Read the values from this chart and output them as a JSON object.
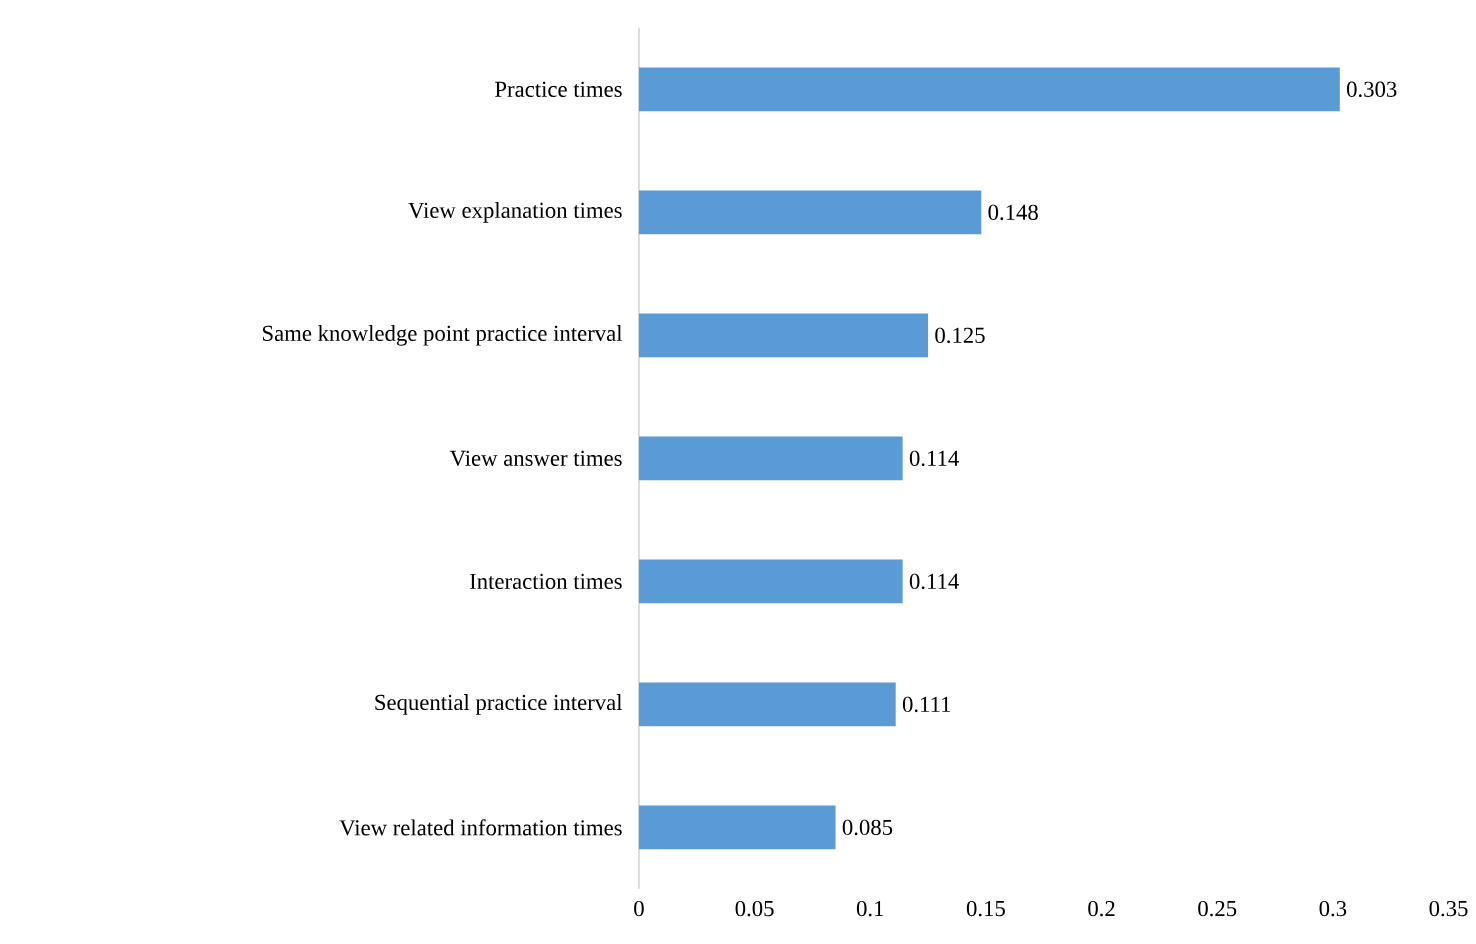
{
  "chart_data": {
    "type": "bar",
    "orientation": "horizontal",
    "categories": [
      "Practice times",
      "View explanation times",
      "Same knowledge point practice interval",
      "View answer times",
      "Interaction times",
      "Sequential practice interval",
      "View related information times"
    ],
    "values": [
      0.303,
      0.148,
      0.125,
      0.114,
      0.114,
      0.111,
      0.085
    ],
    "color": "#5b9bd5",
    "xlim": [
      0,
      0.35
    ],
    "xticks": [
      0,
      0.05,
      0.1,
      0.15,
      0.2,
      0.25,
      0.3,
      0.35
    ],
    "data_labels": true
  }
}
